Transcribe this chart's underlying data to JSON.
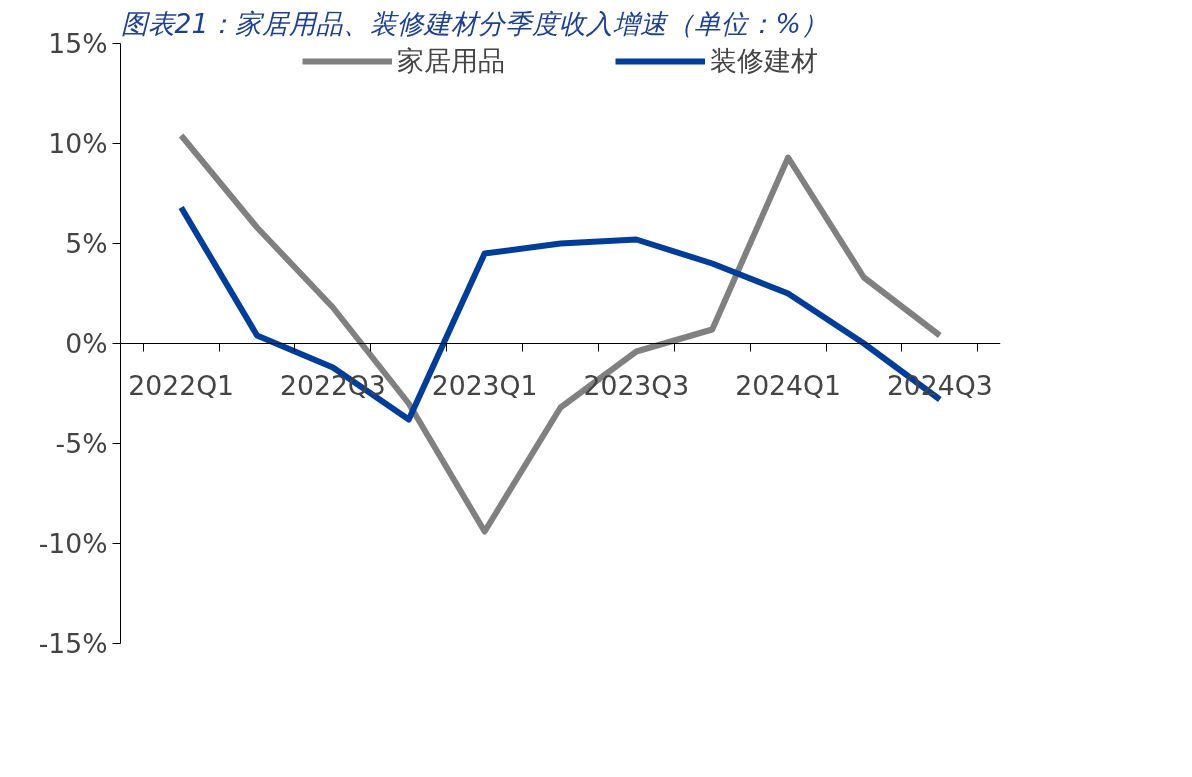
{
  "chart_data": {
    "type": "line",
    "title": "图表21：家居用品、装修建材分季度收入增速（单位：%）",
    "categories": [
      "2022Q1",
      null,
      "2022Q3",
      null,
      "2023Q1",
      null,
      "2023Q3",
      null,
      "2024Q1",
      null,
      "2024Q3"
    ],
    "series": [
      {
        "name": "家居用品",
        "color": "#808080",
        "values": [
          10.4,
          5.8,
          1.8,
          -3.0,
          -9.4,
          -3.2,
          -0.4,
          0.7,
          9.3,
          3.3,
          0.4
        ]
      },
      {
        "name": "装修建材",
        "color": "#003d99",
        "values": [
          6.8,
          0.4,
          -1.2,
          -3.8,
          4.5,
          5.0,
          5.2,
          4.0,
          2.5,
          0.0,
          -2.8
        ]
      }
    ],
    "ylim": [
      -15,
      15
    ],
    "yticks": [
      {
        "value": -15,
        "label": "-15%"
      },
      {
        "value": -10,
        "label": "-10%"
      },
      {
        "value": -5,
        "label": "-5%"
      },
      {
        "value": 0,
        "label": "0%"
      },
      {
        "value": 5,
        "label": "5%"
      },
      {
        "value": 10,
        "label": "10%"
      },
      {
        "value": 15,
        "label": "15%"
      }
    ],
    "legend": "top",
    "grid": false,
    "marker": "none",
    "line_style": "solid"
  }
}
